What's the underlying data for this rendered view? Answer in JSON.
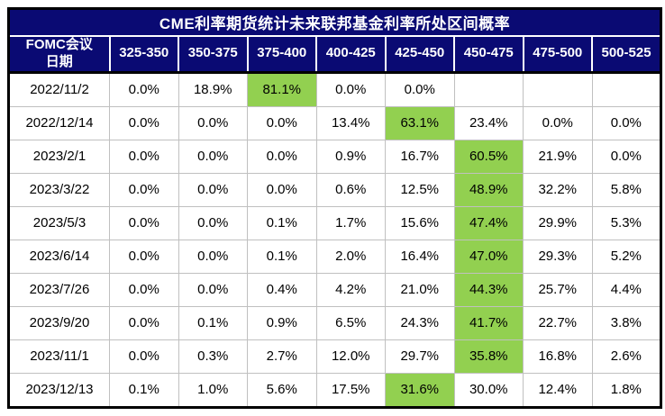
{
  "chart_data": {
    "type": "table",
    "title": "CME利率期货统计未来联邦基金利率所处区间概率",
    "row_header": {
      "line1": "FOMC会议",
      "line2": "日期"
    },
    "columns": [
      "325-350",
      "350-375",
      "375-400",
      "400-425",
      "425-450",
      "450-475",
      "475-500",
      "500-525"
    ],
    "rows": [
      {
        "date": "2022/11/2",
        "values": [
          "0.0%",
          "18.9%",
          "81.1%",
          "0.0%",
          "0.0%",
          "",
          "",
          ""
        ],
        "highlight_col": 2
      },
      {
        "date": "2022/12/14",
        "values": [
          "0.0%",
          "0.0%",
          "0.0%",
          "13.4%",
          "63.1%",
          "23.4%",
          "0.0%",
          "0.0%"
        ],
        "highlight_col": 4
      },
      {
        "date": "2023/2/1",
        "values": [
          "0.0%",
          "0.0%",
          "0.0%",
          "0.9%",
          "16.7%",
          "60.5%",
          "21.9%",
          "0.0%"
        ],
        "highlight_col": 5
      },
      {
        "date": "2023/3/22",
        "values": [
          "0.0%",
          "0.0%",
          "0.0%",
          "0.6%",
          "12.5%",
          "48.9%",
          "32.2%",
          "5.8%"
        ],
        "highlight_col": 5
      },
      {
        "date": "2023/5/3",
        "values": [
          "0.0%",
          "0.0%",
          "0.1%",
          "1.7%",
          "15.6%",
          "47.4%",
          "29.9%",
          "5.3%"
        ],
        "highlight_col": 5
      },
      {
        "date": "2023/6/14",
        "values": [
          "0.0%",
          "0.0%",
          "0.1%",
          "2.0%",
          "16.4%",
          "47.0%",
          "29.3%",
          "5.2%"
        ],
        "highlight_col": 5
      },
      {
        "date": "2023/7/26",
        "values": [
          "0.0%",
          "0.0%",
          "0.4%",
          "4.2%",
          "21.0%",
          "44.3%",
          "25.7%",
          "4.4%"
        ],
        "highlight_col": 5
      },
      {
        "date": "2023/9/20",
        "values": [
          "0.0%",
          "0.1%",
          "0.9%",
          "6.5%",
          "24.3%",
          "41.7%",
          "22.7%",
          "3.8%"
        ],
        "highlight_col": 5
      },
      {
        "date": "2023/11/1",
        "values": [
          "0.0%",
          "0.3%",
          "2.7%",
          "12.0%",
          "29.7%",
          "35.8%",
          "16.8%",
          "2.6%"
        ],
        "highlight_col": 5
      },
      {
        "date": "2023/12/13",
        "values": [
          "0.1%",
          "1.0%",
          "5.6%",
          "17.5%",
          "31.6%",
          "30.0%",
          "12.4%",
          "1.8%"
        ],
        "highlight_col": 4
      }
    ],
    "colors": {
      "header_navy": "#0a0a73",
      "highlight_green": "#92d050",
      "grid_gray": "#c0c0c0",
      "outer_border": "#000000",
      "header_text": "#ffffff",
      "body_text": "#000000"
    },
    "layout": {
      "legend_position": "none",
      "grid": "on"
    }
  }
}
